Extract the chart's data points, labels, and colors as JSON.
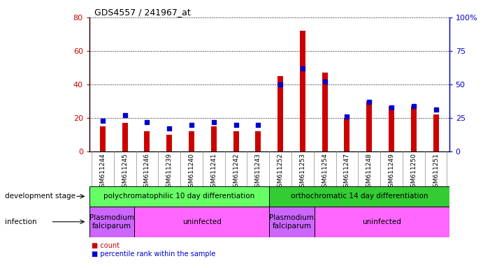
{
  "title": "GDS4557 / 241967_at",
  "samples": [
    "GSM611244",
    "GSM611245",
    "GSM611246",
    "GSM611239",
    "GSM611240",
    "GSM611241",
    "GSM611242",
    "GSM611243",
    "GSM611252",
    "GSM611253",
    "GSM611254",
    "GSM611247",
    "GSM611248",
    "GSM611249",
    "GSM611250",
    "GSM611251"
  ],
  "counts": [
    15,
    17,
    12,
    10,
    12,
    15,
    12,
    12,
    45,
    72,
    47,
    20,
    30,
    27,
    27,
    22
  ],
  "percentiles": [
    23,
    27,
    22,
    17,
    20,
    22,
    20,
    20,
    50,
    62,
    52,
    26,
    37,
    33,
    34,
    31
  ],
  "bar_color_red": "#CC0000",
  "bar_color_blue": "#0000CC",
  "left_ylim": [
    0,
    80
  ],
  "right_ylim": [
    0,
    100
  ],
  "left_yticks": [
    0,
    20,
    40,
    60,
    80
  ],
  "right_yticks": [
    0,
    25,
    50,
    75,
    100
  ],
  "right_yticklabels": [
    "0",
    "25",
    "50",
    "75",
    "100%"
  ],
  "dev_stage_labels": [
    "polychromatophilic 10 day differentiation",
    "orthochromatic 14 day differentiation"
  ],
  "dev_stage_color": "#66FF66",
  "ortho_color": "#33CC33",
  "infection_labels": [
    "Plasmodium\nfalciparum",
    "uninfected",
    "Plasmodium\nfalciparum",
    "uninfected"
  ],
  "infection_falciparum_color": "#CC66FF",
  "infection_uninfected_color": "#FF66FF",
  "infection_label": "infection",
  "dev_stage_label": "development stage",
  "legend_count": "count",
  "legend_percentile": "percentile rank within the sample",
  "bg_color": "#FFFFFF",
  "plot_bg": "#FFFFFF",
  "xtick_bg": "#CCCCCC",
  "grid_color": "#000000"
}
